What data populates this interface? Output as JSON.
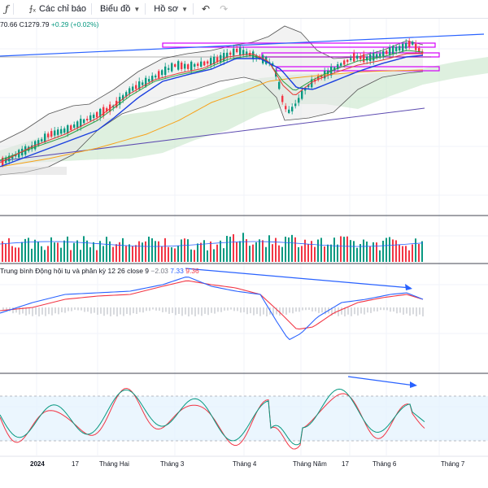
{
  "toolbar": {
    "indicators_label": "Các chỉ báo",
    "chart_label": "Biểu đồ",
    "profile_label": "Hồ sơ",
    "fx_icon": "function-icon",
    "undo_icon": "undo-icon",
    "redo_icon": "redo-icon",
    "chevron_icon": "chevron-down-icon"
  },
  "price_legend": {
    "prefix": "70.66",
    "close": "C1279.79",
    "change": "+0.29 (+0.02%)"
  },
  "macd_legend": {
    "title": "Trung bình Động hội tụ và phân kỳ 12 26 close 9",
    "hist": "−2.03",
    "macd": "7.33",
    "signal": "9.36"
  },
  "colors": {
    "up": "#089981",
    "down": "#f23645",
    "blue_line": "#2962ff",
    "signal_line": "#f23645",
    "cloud": "#c8e6c9",
    "bb_fill": "#e8e8e8",
    "magenta_zone": "#d500f9",
    "stoch_band": "#e3f2fd"
  },
  "x_axis": {
    "labels": [
      {
        "text": "2024",
        "bold": true
      },
      {
        "text": "17",
        "bold": false
      },
      {
        "text": "Tháng Hai",
        "bold": false
      },
      {
        "text": "Tháng 3",
        "bold": false
      },
      {
        "text": "Tháng 4",
        "bold": false
      },
      {
        "text": "Tháng Năm",
        "bold": false
      },
      {
        "text": "17",
        "bold": false
      },
      {
        "text": "Tháng 6",
        "bold": false
      },
      {
        "text": "Tháng 7",
        "bold": false
      }
    ]
  },
  "chart_data": {
    "type": "candlestick",
    "panes": [
      "price",
      "volume",
      "macd",
      "stochastic"
    ],
    "close_last": 1279.79,
    "change": 0.29,
    "change_pct": 0.02,
    "macd_params": [
      12,
      26,
      9
    ],
    "macd_values": {
      "histogram": -2.03,
      "macd": 7.33,
      "signal": 9.36
    },
    "grid": true
  }
}
